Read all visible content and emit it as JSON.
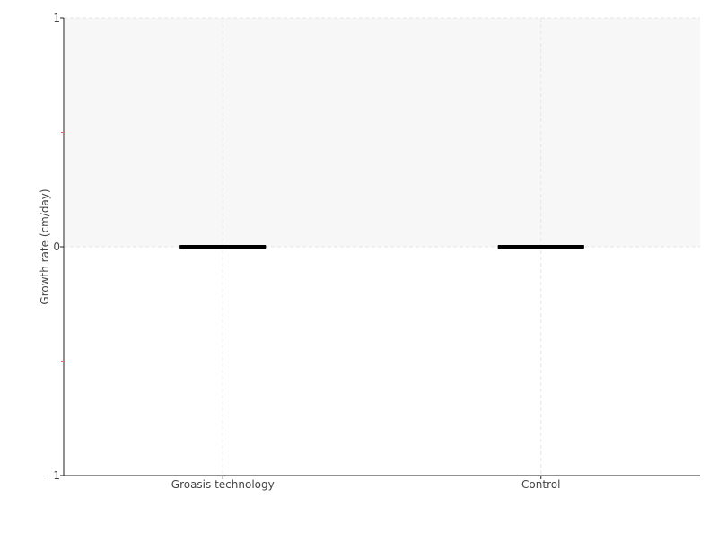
{
  "chart_data": {
    "type": "box",
    "title": "",
    "xlabel": "",
    "ylabel": "Growth rate (cm/day)",
    "ylim": [
      -1,
      1
    ],
    "yticks": [
      "-1",
      "0",
      "1"
    ],
    "categories": [
      "Groasis technology",
      "Control"
    ],
    "series": [
      {
        "category": "Groasis technology",
        "min": 0,
        "q1": 0,
        "median": 0,
        "q3": 0,
        "max": 0
      },
      {
        "category": "Control",
        "min": 0,
        "q1": 0,
        "median": 0,
        "q3": 0,
        "max": 0
      }
    ],
    "shaded_band": [
      0,
      1
    ],
    "grid": true,
    "colors": {
      "box": "#000000",
      "band": "#f7f7f7",
      "grid": "#e6e6e6",
      "minor_tick": "#e06666"
    }
  }
}
